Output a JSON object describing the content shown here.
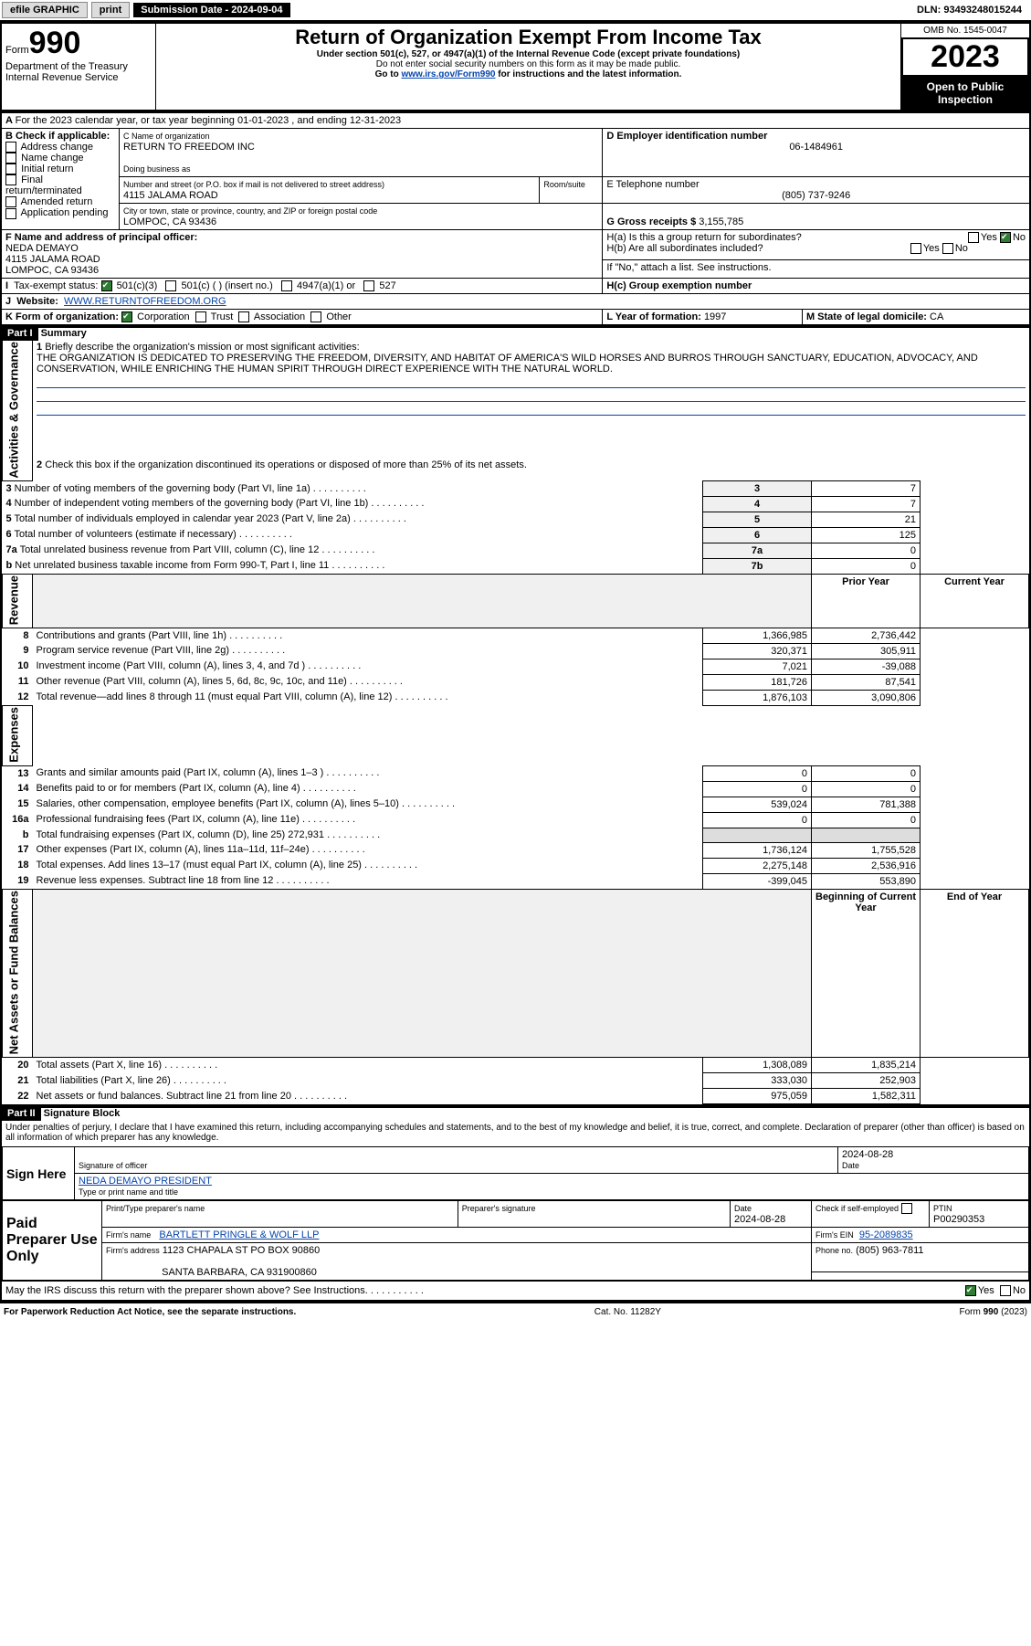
{
  "topbar": {
    "efile": "efile GRAPHIC",
    "print": "print",
    "submission": "Submission Date - 2024-09-04",
    "dln": "DLN: 93493248015244"
  },
  "header": {
    "form": "990",
    "form_prefix": "Form",
    "title": "Return of Organization Exempt From Income Tax",
    "sub1": "Under section 501(c), 527, or 4947(a)(1) of the Internal Revenue Code (except private foundations)",
    "sub2": "Do not enter social security numbers on this form as it may be made public.",
    "sub3_prefix": "Go to ",
    "sub3_link": "www.irs.gov/Form990",
    "sub3_suffix": " for instructions and the latest information.",
    "omb": "OMB No. 1545-0047",
    "year": "2023",
    "open": "Open to Public Inspection",
    "dept": "Department of the Treasury",
    "irs": "Internal Revenue Service"
  },
  "line_a": "For the 2023 calendar year, or tax year beginning 01-01-2023    , and ending 12-31-2023",
  "box_b": {
    "label": "B Check if applicable:",
    "opts": [
      "Address change",
      "Name change",
      "Initial return",
      "Final return/terminated",
      "Amended return",
      "Application pending"
    ]
  },
  "box_c": {
    "label_name": "C Name of organization",
    "name": "RETURN TO FREEDOM INC",
    "dba_label": "Doing business as",
    "dba": "",
    "street_label": "Number and street (or P.O. box if mail is not delivered to street address)",
    "room_label": "Room/suite",
    "street": "4115 JALAMA ROAD",
    "city_label": "City or town, state or province, country, and ZIP or foreign postal code",
    "city": "LOMPOC, CA  93436"
  },
  "box_d": {
    "label": "D Employer identification number",
    "ein": "06-1484961"
  },
  "box_e": {
    "label": "E Telephone number",
    "phone": "(805) 737-9246"
  },
  "box_g": {
    "label": "G Gross receipts $",
    "amount": "3,155,785"
  },
  "box_f": {
    "label": "F Name and address of principal officer:",
    "name": "NEDA DEMAYO",
    "street": "4115 JALAMA ROAD",
    "city": "LOMPOC, CA  93436"
  },
  "box_h": {
    "a_label": "H(a)  Is this a group return for subordinates?",
    "a_no": true,
    "b_label": "H(b)  Are all subordinates included?",
    "b_note": "If \"No,\" attach a list. See instructions.",
    "c_label": "H(c)  Group exemption number"
  },
  "box_i": {
    "label": "Tax-exempt status:",
    "opt1": "501(c)(3)",
    "opt2": "501(c) (  ) (insert no.)",
    "opt3": "4947(a)(1) or",
    "opt4": "527"
  },
  "box_j": {
    "label": "Website:",
    "url": "WWW.RETURNTOFREEDOM.ORG"
  },
  "box_k": {
    "label": "K Form of organization:",
    "opts": [
      "Corporation",
      "Trust",
      "Association",
      "Other"
    ]
  },
  "box_l": {
    "label": "L Year of formation:",
    "val": "1997"
  },
  "box_m": {
    "label": "M State of legal domicile:",
    "val": "CA"
  },
  "part1": {
    "title": "Part I",
    "name": "Summary",
    "line1_label": "Briefly describe the organization's mission or most significant activities:",
    "line1_text": "THE ORGANIZATION IS DEDICATED TO PRESERVING THE FREEDOM, DIVERSITY, AND HABITAT OF AMERICA'S WILD HORSES AND BURROS THROUGH SANCTUARY, EDUCATION, ADVOCACY, AND CONSERVATION, WHILE ENRICHING THE HUMAN SPIRIT THROUGH DIRECT EXPERIENCE WITH THE NATURAL WORLD.",
    "line2": "Check this box       if the organization discontinued its operations or disposed of more than 25% of its net assets.",
    "lines_ag": [
      {
        "n": "3",
        "label": "Number of voting members of the governing body (Part VI, line 1a)",
        "box": "3",
        "val": "7"
      },
      {
        "n": "4",
        "label": "Number of independent voting members of the governing body (Part VI, line 1b)",
        "box": "4",
        "val": "7"
      },
      {
        "n": "5",
        "label": "Total number of individuals employed in calendar year 2023 (Part V, line 2a)",
        "box": "5",
        "val": "21"
      },
      {
        "n": "6",
        "label": "Total number of volunteers (estimate if necessary)",
        "box": "6",
        "val": "125"
      },
      {
        "n": "7a",
        "label": "Total unrelated business revenue from Part VIII, column (C), line 12",
        "box": "7a",
        "val": "0"
      },
      {
        "n": "b",
        "label": "Net unrelated business taxable income from Form 990-T, Part I, line 11",
        "box": "7b",
        "val": "0"
      }
    ],
    "prior_label": "Prior Year",
    "current_label": "Current Year",
    "lines_rev": [
      {
        "n": "8",
        "label": "Contributions and grants (Part VIII, line 1h)",
        "prior": "1,366,985",
        "cur": "2,736,442"
      },
      {
        "n": "9",
        "label": "Program service revenue (Part VIII, line 2g)",
        "prior": "320,371",
        "cur": "305,911"
      },
      {
        "n": "10",
        "label": "Investment income (Part VIII, column (A), lines 3, 4, and 7d )",
        "prior": "7,021",
        "cur": "-39,088"
      },
      {
        "n": "11",
        "label": "Other revenue (Part VIII, column (A), lines 5, 6d, 8c, 9c, 10c, and 11e)",
        "prior": "181,726",
        "cur": "87,541"
      },
      {
        "n": "12",
        "label": "Total revenue—add lines 8 through 11 (must equal Part VIII, column (A), line 12)",
        "prior": "1,876,103",
        "cur": "3,090,806"
      }
    ],
    "lines_exp": [
      {
        "n": "13",
        "label": "Grants and similar amounts paid (Part IX, column (A), lines 1–3 )",
        "prior": "0",
        "cur": "0"
      },
      {
        "n": "14",
        "label": "Benefits paid to or for members (Part IX, column (A), line 4)",
        "prior": "0",
        "cur": "0"
      },
      {
        "n": "15",
        "label": "Salaries, other compensation, employee benefits (Part IX, column (A), lines 5–10)",
        "prior": "539,024",
        "cur": "781,388"
      },
      {
        "n": "16a",
        "label": "Professional fundraising fees (Part IX, column (A), line 11e)",
        "prior": "0",
        "cur": "0"
      },
      {
        "n": "b",
        "label": "Total fundraising expenses (Part IX, column (D), line 25) 272,931",
        "prior": "",
        "cur": ""
      },
      {
        "n": "17",
        "label": "Other expenses (Part IX, column (A), lines 11a–11d, 11f–24e)",
        "prior": "1,736,124",
        "cur": "1,755,528"
      },
      {
        "n": "18",
        "label": "Total expenses. Add lines 13–17 (must equal Part IX, column (A), line 25)",
        "prior": "2,275,148",
        "cur": "2,536,916"
      },
      {
        "n": "19",
        "label": "Revenue less expenses. Subtract line 18 from line 12",
        "prior": "-399,045",
        "cur": "553,890"
      }
    ],
    "boc_label": "Beginning of Current Year",
    "eoy_label": "End of Year",
    "lines_na": [
      {
        "n": "20",
        "label": "Total assets (Part X, line 16)",
        "prior": "1,308,089",
        "cur": "1,835,214"
      },
      {
        "n": "21",
        "label": "Total liabilities (Part X, line 26)",
        "prior": "333,030",
        "cur": "252,903"
      },
      {
        "n": "22",
        "label": "Net assets or fund balances. Subtract line 21 from line 20",
        "prior": "975,059",
        "cur": "1,582,311"
      }
    ],
    "side_ag": "Activities & Governance",
    "side_rev": "Revenue",
    "side_exp": "Expenses",
    "side_na": "Net Assets or Fund Balances"
  },
  "part2": {
    "title": "Part II",
    "name": "Signature Block",
    "perjury": "Under penalties of perjury, I declare that I have examined this return, including accompanying schedules and statements, and to the best of my knowledge and belief, it is true, correct, and complete. Declaration of preparer (other than officer) is based on all information of which preparer has any knowledge.",
    "sign_here": "Sign Here",
    "sig_officer": "Signature of officer",
    "officer_name": "NEDA DEMAYO PRESIDENT",
    "type_name": "Type or print name and title",
    "date": "2024-08-28",
    "date_label": "Date",
    "paid": "Paid Preparer Use Only",
    "prep_name_label": "Print/Type preparer's name",
    "prep_sig_label": "Preparer's signature",
    "prep_date": "2024-08-28",
    "check_label": "Check         if self-employed",
    "ptin_label": "PTIN",
    "ptin": "P00290353",
    "firm_name_label": "Firm's name",
    "firm_name": "BARTLETT PRINGLE & WOLF LLP",
    "firm_ein_label": "Firm's EIN",
    "firm_ein": "95-2089835",
    "firm_addr_label": "Firm's address",
    "firm_addr1": "1123 CHAPALA ST PO BOX 90860",
    "firm_addr2": "SANTA BARBARA, CA  931900860",
    "phone_label": "Phone no.",
    "phone": "(805) 963-7811",
    "discuss": "May the IRS discuss this return with the preparer shown above? See Instructions.",
    "yes": "Yes",
    "no": "No"
  },
  "footer": {
    "left": "For Paperwork Reduction Act Notice, see the separate instructions.",
    "mid": "Cat. No. 11282Y",
    "right": "Form 990 (2023)"
  }
}
